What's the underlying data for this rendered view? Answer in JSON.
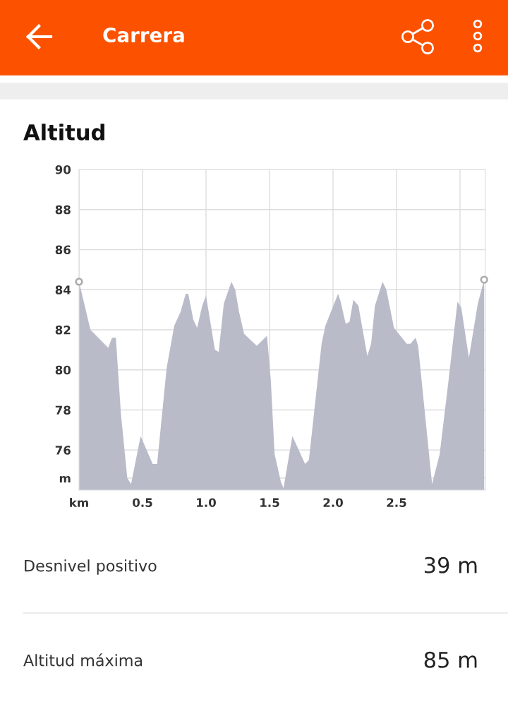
{
  "chart_data": {
    "type": "area",
    "title": "Carrera",
    "subtitle": "Altitud",
    "series": [
      {
        "color": "#b9bbc9",
        "x": [
          0,
          0.09,
          0.23,
          0.26,
          0.29,
          0.33,
          0.38,
          0.41,
          0.485,
          0.58,
          0.615,
          0.69,
          0.75,
          0.8,
          0.84,
          0.86,
          0.9,
          0.93,
          0.97,
          1.0,
          1.07,
          1.1,
          1.14,
          1.2,
          1.23,
          1.26,
          1.3,
          1.4,
          1.48,
          1.51,
          1.54,
          1.59,
          1.61,
          1.68,
          1.78,
          1.81,
          1.91,
          1.94,
          1.99,
          2.04,
          2.06,
          2.1,
          2.13,
          2.16,
          2.2,
          2.27,
          2.3,
          2.33,
          2.39,
          2.42,
          2.48,
          2.58,
          2.61,
          2.65,
          2.67,
          2.78,
          2.84,
          2.91,
          2.98,
          3.01,
          3.07,
          3.14,
          3.19
        ],
        "values": [
          84.4,
          82.0,
          81.1,
          81.6,
          81.6,
          77.8,
          74.6,
          74.3,
          76.7,
          75.3,
          75.3,
          80.1,
          82.2,
          82.9,
          83.8,
          83.8,
          82.5,
          82.1,
          83.2,
          83.7,
          81.0,
          80.9,
          83.3,
          84.4,
          84.0,
          82.9,
          81.8,
          81.2,
          81.7,
          79.5,
          75.8,
          74.4,
          74.1,
          76.7,
          75.3,
          75.5,
          81.3,
          82.2,
          83.0,
          83.8,
          83.4,
          82.3,
          82.4,
          83.5,
          83.2,
          80.7,
          81.3,
          83.2,
          84.4,
          84.0,
          82.1,
          81.3,
          81.3,
          81.6,
          81.2,
          74.3,
          75.8,
          79.5,
          83.4,
          83.1,
          80.6,
          83.3,
          84.5
        ]
      },
      {
        "type": "scatter",
        "color": "#aaaaaa",
        "x": [
          0,
          3.19
        ],
        "values": [
          84.4,
          84.5
        ],
        "marker": "circle"
      }
    ],
    "xlim": [
      0,
      3.2
    ],
    "xticks": [
      {
        "value": 0,
        "label": "km"
      },
      0.5,
      {
        "value": 1.0,
        "label": "1.0"
      },
      1.5,
      {
        "value": 2.0,
        "label": "2.0"
      },
      2.5,
      {
        "value": 3.0,
        "label": null
      }
    ],
    "ylim": [
      74,
      90
    ],
    "yticks": [
      {
        "value": 74.6,
        "label": "m"
      },
      76,
      78,
      80,
      82,
      84,
      86,
      88,
      90
    ],
    "grid": true,
    "legend": false,
    "annotations": [
      "Desnivel positivo",
      "39 m",
      "Altitud máxima",
      "85 m"
    ]
  }
}
